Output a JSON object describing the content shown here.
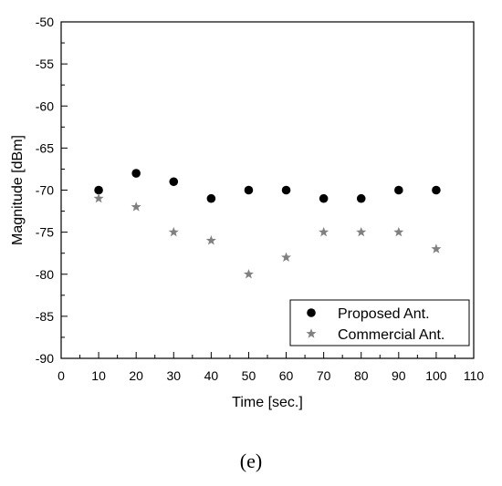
{
  "chart_data": {
    "type": "scatter",
    "xlabel": "Time [sec.]",
    "ylabel": "Magnitude [dBm]",
    "xlim": [
      0,
      110
    ],
    "ylim": [
      -90,
      -50
    ],
    "xticks": [
      0,
      10,
      20,
      30,
      40,
      50,
      60,
      70,
      80,
      90,
      100,
      110
    ],
    "yticks": [
      -90,
      -85,
      -80,
      -75,
      -70,
      -65,
      -60,
      -55,
      -50
    ],
    "x_minor_step": 5,
    "y_minor_step": 2.5,
    "grid": false,
    "legend_position": "bottom-right",
    "series": [
      {
        "name": "Proposed Ant.",
        "marker": "circle",
        "color": "#000000",
        "x": [
          10,
          20,
          30,
          40,
          50,
          60,
          70,
          80,
          90,
          100
        ],
        "y": [
          -70,
          -68,
          -69,
          -71,
          -70,
          -70,
          -71,
          -71,
          -70,
          -70
        ]
      },
      {
        "name": "Commercial Ant.",
        "marker": "star",
        "color": "#808080",
        "x": [
          10,
          20,
          30,
          40,
          50,
          60,
          70,
          80,
          90,
          100
        ],
        "y": [
          -71,
          -72,
          -75,
          -76,
          -80,
          -78,
          -75,
          -75,
          -75,
          -77
        ]
      }
    ]
  },
  "caption": "(e)"
}
